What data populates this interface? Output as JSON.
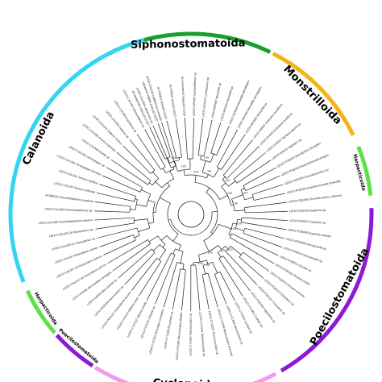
{
  "figure": {
    "root_label": "",
    "clades": [
      {
        "name": "Siphonostomatoida",
        "color": "#1a9e2c",
        "start_deg": -28,
        "end_deg": 26,
        "label_size": "big"
      },
      {
        "name": "Monstrilloida",
        "color": "#f2b419",
        "start_deg": 27,
        "end_deg": 64,
        "label_size": "big"
      },
      {
        "name": "Harpacticoida",
        "color": "#5fe04a",
        "start_deg": 68,
        "end_deg": 84,
        "label_size": "small"
      },
      {
        "name": "Poecilostomatoida",
        "color": "#8a1ad6",
        "start_deg": 88,
        "end_deg": 150,
        "label_size": "big"
      },
      {
        "name": "Cyclopoida",
        "color": "#f39ae8",
        "start_deg": 152,
        "end_deg": 212,
        "label_size": "big"
      },
      {
        "name": "Poecilostomatoida",
        "color": "#8a1ad6",
        "start_deg": 213,
        "end_deg": 228,
        "label_size": "small"
      },
      {
        "name": "Harpacticoida",
        "color": "#5fe04a",
        "start_deg": 229,
        "end_deg": 245,
        "label_size": "small"
      },
      {
        "name": "Calanoida",
        "color": "#33d6f0",
        "start_deg": 248,
        "end_deg": 345,
        "label_size": "big"
      }
    ],
    "tips": [
      "LEGO-SIPH06 Hatschekia sp.",
      "LEGO-SIPH03 Caligus quadratus",
      "LEGO-SIPH02 Caligus sp.",
      "LEGO-SIPH01 Caligus sp.",
      "LEGO-SIPH04 Lernaeocera sp.",
      "LEGO-SIPH05 Lepeophtheirus sp.",
      "LEGO-MON01 Cymbasoma sp.",
      "LEGO-MON02 Monstrilla sp.",
      "LEGO-MON03 Monstrilla sp.",
      "LEGO-MON04 Monstrilla hamatapex",
      "LEGO-MON05 Monstrilla hamatapex",
      "LEGO-MON06 Monstrilla sp.",
      "LEGO-HAR01 Euterpina acutifrons",
      "LEGO-HAR02 Euterpina acutifrons",
      "LEGO-HAR03 Tigriopus japonicus",
      "LEGO-HAR04 Tigriopus sp.",
      "LEGO-POE001 Bomolochus decapteri",
      "LEGO-POE002 Brachiochondria pinguis",
      "LEGO-POE003 Chondracanthus zei",
      "LEGO-POE004 Acanthochondria limandae",
      "LEGO-POE005 Chondracanthus distortus",
      "LEGO-POE006 Ergasilus sp.",
      "LEGO-POE007 Ergasilus sp.",
      "LEGO-POE008 Ergasilus sieboldi",
      "LEGO-POE009 Hermannella sp.",
      "LEGO-POE010 Hermannella sp.",
      "LEGO-POE011 Oncaea sp.",
      "LEGO-POE012 Oncaea media",
      "LEGO-POE013 Oncaea venusta",
      "LEGO-POE014 Corycaeus sp.",
      "LEGO-POE015 Corycaeus sp.",
      "LEGO-POE016 Sapphirina sp.",
      "LEGO-CYC001 Cyclops sp.",
      "LEGO-CYC002 Cyclops sp.",
      "LEGO-CYC003 Mesocyclops sp.",
      "LEGO-CYC004 Mesocyclops leuckarti",
      "LEGO-CYC005 Thermocyclops sp.",
      "LEGO-CYC006 Thermocyclops sp.",
      "LEGO-CYC007 Macrocyclops sp.",
      "LEGO-CYC008 Macrocyclops albidus",
      "LEGO-CYC009 Eucyclops sp.",
      "LEGO-CYC010 Eucyclops serrulatus",
      "LEGO-CYC011 Oithona sp.",
      "LEGO-CYC012 Oithona similis",
      "LEGO-CYC013 Oithona nana",
      "LEGO-POE017 Paracalanus parvus",
      "LEGO-POE018 Paracalanus sp.",
      "LEGO-HAR05 Microsetella sp.",
      "LEGO-HAR06 Microsetella norvegica",
      "LEGO-CAL057-36 Paracalanus parvus",
      "LEGO-CAL057-34 Paracalanus parvus",
      "LEGO-CAL057 Paracalanus parvus",
      "LEGO-CAL033-15 Paracalanus sp.",
      "LEGO-CAL033-16 Paracalanus sp.",
      "LEGO-CAL066 Pseudodiaptomus marinus",
      "LEGO-CAL068 Pseudodiaptomus sp.",
      "AF380019 Pseudodiaptomus poplesia",
      "LEGO-CAL035 Temora turbinata",
      "LEGO-CAL041 Temora stylifera",
      "LEGO-CAL045 Centropages furcatus",
      "LEGO-CAL046 Centropages sp.",
      "LEGO-CAL049 Acartia sp.",
      "LEGO-CAL050 Acartia erythraea",
      "LEGO-CAL051 Calanus sinicus",
      "LEGO-CAL052 Calanus sp.",
      "LEGO-CAL053 Eucalanus sp.",
      "LEGO-CAL054 Subeucalanus sp.",
      "LEGO-CAL055 Labidocera sp.",
      "LEGO-CAL056 Labidocera euchaeta"
    ],
    "support_values": [
      "100",
      "100",
      "100",
      "99",
      "100",
      "100",
      "100",
      "98",
      "100",
      "100",
      "100",
      "100",
      "100",
      "97",
      "100",
      "100"
    ]
  }
}
